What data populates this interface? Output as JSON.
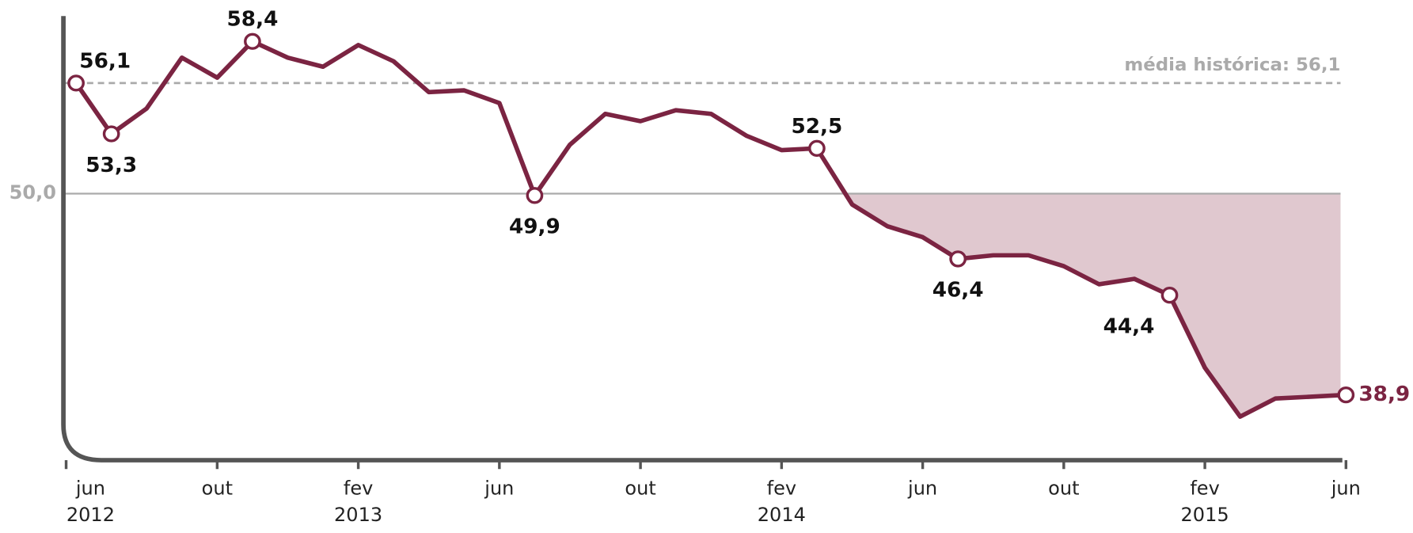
{
  "chart_data": {
    "type": "line",
    "categories": [
      "jun",
      null,
      null,
      null,
      "out",
      null,
      null,
      null,
      "fev",
      null,
      null,
      null,
      "jun",
      null,
      null,
      null,
      "out",
      null,
      null,
      null,
      "fev",
      null,
      null,
      null,
      "jun",
      null,
      null,
      null,
      "out",
      null,
      null,
      null,
      "fev",
      null,
      null,
      null,
      "jun"
    ],
    "sublabels": [
      "2012",
      null,
      null,
      null,
      null,
      null,
      null,
      null,
      "2013",
      null,
      null,
      null,
      null,
      null,
      null,
      null,
      null,
      null,
      null,
      null,
      "2014",
      null,
      null,
      null,
      null,
      null,
      null,
      null,
      null,
      null,
      null,
      null,
      "2015",
      null,
      null,
      null,
      null
    ],
    "series": [
      {
        "color": "#7b2442",
        "values": [
          56.1,
          53.3,
          54.7,
          57.5,
          56.4,
          58.4,
          57.5,
          57.0,
          58.2,
          57.3,
          55.6,
          55.7,
          55.0,
          49.9,
          52.7,
          54.4,
          54.0,
          54.6,
          54.4,
          53.2,
          52.4,
          52.5,
          49.4,
          48.2,
          47.6,
          46.4,
          46.6,
          46.6,
          46.0,
          45.0,
          45.3,
          44.4,
          40.4,
          37.7,
          38.7,
          38.8,
          38.9
        ],
        "value_labels": [
          "56,1",
          "53,3",
          null,
          null,
          null,
          "58,4",
          null,
          null,
          null,
          null,
          null,
          null,
          null,
          "49,9",
          null,
          null,
          null,
          null,
          null,
          null,
          null,
          "52,5",
          null,
          null,
          null,
          "46,4",
          null,
          null,
          null,
          null,
          null,
          "44,4",
          null,
          null,
          null,
          null,
          "38,9"
        ]
      }
    ],
    "ylim": [
      35.3,
      59.8
    ],
    "yticks": [
      {
        "value": 50,
        "label": "50,0"
      }
    ],
    "reference_line": {
      "value": 56.1,
      "label": "média histórica: 56,1",
      "color": "#aaaaaa"
    },
    "fill_below": 50,
    "fill_color": "#e0c8cf"
  }
}
